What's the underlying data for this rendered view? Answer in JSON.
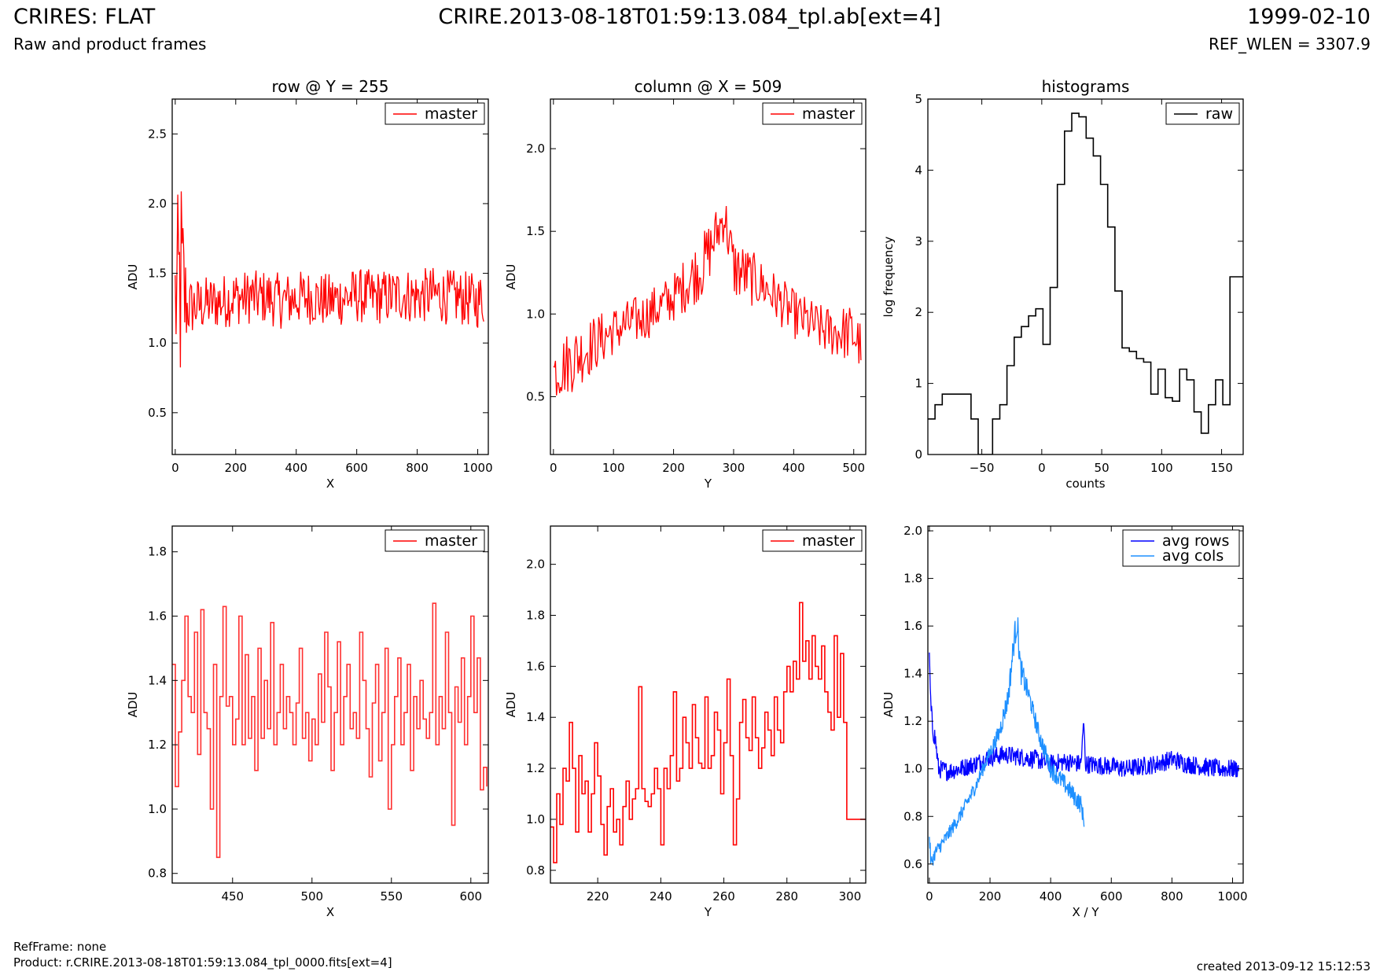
{
  "header": {
    "left_title": "CRIRES: FLAT",
    "left_subtitle": "Raw and product frames",
    "center_title": "CRIRE.2013-08-18T01:59:13.084_tpl.ab[ext=4]",
    "right_date": "1999-02-10",
    "right_wlen": "REF_WLEN = 3307.9"
  },
  "footer": {
    "refframe": "RefFrame: none",
    "product": "Product: r.CRIRE.2013-08-18T01:59:13.084_tpl_0000.fits[ext=4]",
    "created": "created 2013-09-12 15:12:53"
  },
  "colors": {
    "red": "#ff0000",
    "black": "#000000",
    "blue": "#0000ff",
    "lightblue": "#1e90ff"
  },
  "chart_data": [
    {
      "id": "row",
      "type": "line",
      "title": "row @ Y = 255",
      "xlabel": "X",
      "ylabel": "ADU",
      "xlim": [
        -10,
        1035
      ],
      "ylim": [
        0.2,
        2.75
      ],
      "xticks": [
        0,
        200,
        400,
        600,
        800,
        1000
      ],
      "yticks": [
        0.5,
        1.0,
        1.5,
        2.0,
        2.5
      ],
      "ytick_labels": [
        "0.5",
        "1.0",
        "1.5",
        "2.0",
        "2.5"
      ],
      "legend": [
        {
          "label": "master",
          "color": "#ff0000"
        }
      ],
      "legend_loc": "top-right",
      "series": [
        {
          "name": "master",
          "color": "#ff0000",
          "x": [
            0,
            20,
            40,
            100,
            160,
            200,
            240,
            250,
            260,
            300,
            350,
            400,
            450,
            500,
            550,
            600,
            650,
            700,
            750,
            800,
            850,
            900,
            950,
            1000,
            1020
          ],
          "y": [
            1.3,
            1.4,
            1.25,
            1.28,
            1.3,
            1.33,
            1.32,
            1.35,
            1.32,
            1.33,
            1.3,
            1.32,
            1.33,
            1.3,
            1.32,
            1.34,
            1.33,
            1.33,
            1.35,
            1.33,
            1.35,
            1.33,
            1.32,
            1.3,
            1.32
          ],
          "spread": [
            0.6,
            0.9,
            0.22,
            0.2,
            0.2,
            0.2,
            0.2,
            0.2,
            0.2,
            0.2,
            0.2,
            0.2,
            0.2,
            0.2,
            0.2,
            0.2,
            0.2,
            0.2,
            0.2,
            0.2,
            0.2,
            0.2,
            0.2,
            0.2,
            0.2
          ],
          "n": 360
        }
      ]
    },
    {
      "id": "col",
      "type": "line",
      "title": "column @ X = 509",
      "xlabel": "Y",
      "ylabel": "ADU",
      "xlim": [
        -5,
        520
      ],
      "ylim": [
        0.15,
        2.3
      ],
      "xticks": [
        0,
        100,
        200,
        300,
        400,
        500
      ],
      "yticks": [
        0.5,
        1.0,
        1.5,
        2.0
      ],
      "ytick_labels": [
        "0.5",
        "1.0",
        "1.5",
        "2.0"
      ],
      "legend": [
        {
          "label": "master",
          "color": "#ff0000"
        }
      ],
      "legend_loc": "top-right",
      "series": [
        {
          "name": "master",
          "color": "#ff0000",
          "x": [
            0,
            30,
            60,
            100,
            150,
            200,
            250,
            285,
            300,
            350,
            400,
            450,
            500,
            512
          ],
          "y": [
            0.65,
            0.72,
            0.8,
            0.9,
            0.98,
            1.1,
            1.3,
            1.6,
            1.28,
            1.17,
            1.0,
            0.9,
            0.88,
            0.8
          ],
          "spread": [
            0.18,
            0.2,
            0.18,
            0.15,
            0.15,
            0.15,
            0.2,
            0.15,
            0.2,
            0.15,
            0.15,
            0.15,
            0.18,
            0.15
          ],
          "n": 300
        }
      ]
    },
    {
      "id": "hist",
      "type": "line",
      "title": "histograms",
      "xlabel": "counts",
      "ylabel": "log frequency",
      "xlim": [
        -95,
        168
      ],
      "ylim": [
        0,
        5
      ],
      "xticks": [
        -50,
        0,
        50,
        100,
        150
      ],
      "xtick_labels": [
        "−50",
        "0",
        "50",
        "100",
        "150"
      ],
      "yticks": [
        0,
        1,
        2,
        3,
        4,
        5
      ],
      "ytick_labels": [
        "0",
        "1",
        "2",
        "3",
        "4",
        "5"
      ],
      "legend": [
        {
          "label": "raw",
          "color": "#000000"
        }
      ],
      "legend_loc": "top-right",
      "series": [
        {
          "name": "raw",
          "color": "#000000",
          "step": true,
          "x": [
            -95,
            -89,
            -83,
            -77,
            -71,
            -65,
            -59,
            -53,
            -47,
            -41,
            -35,
            -29,
            -23,
            -17,
            -11,
            -5,
            1,
            7,
            13,
            19,
            25,
            31,
            37,
            43,
            49,
            55,
            61,
            67,
            73,
            79,
            85,
            91,
            97,
            103,
            109,
            115,
            121,
            127,
            133,
            139,
            145,
            151,
            157,
            163,
            168
          ],
          "y": [
            0.5,
            0.7,
            0.85,
            0.85,
            0.85,
            0.85,
            0.5,
            0.0,
            0.0,
            0.5,
            0.7,
            1.25,
            1.65,
            1.8,
            1.95,
            2.05,
            1.55,
            2.35,
            3.8,
            4.55,
            4.8,
            4.75,
            4.45,
            4.2,
            3.8,
            3.2,
            2.3,
            1.5,
            1.45,
            1.35,
            1.3,
            0.85,
            1.2,
            0.8,
            0.75,
            1.2,
            1.05,
            0.6,
            0.3,
            0.7,
            1.05,
            0.7,
            2.5,
            2.5,
            2.5
          ]
        }
      ]
    },
    {
      "id": "rowzoom",
      "type": "line",
      "title": "",
      "xlabel": "X",
      "ylabel": "ADU",
      "xlim": [
        412,
        611
      ],
      "ylim": [
        0.77,
        1.88
      ],
      "xticks": [
        450,
        500,
        550,
        600
      ],
      "yticks": [
        0.8,
        1.0,
        1.2,
        1.4,
        1.6,
        1.8
      ],
      "ytick_labels": [
        "0.8",
        "1.0",
        "1.2",
        "1.4",
        "1.6",
        "1.8"
      ],
      "legend": [
        {
          "label": "master",
          "color": "#ff0000"
        }
      ],
      "legend_loc": "top-right",
      "series": [
        {
          "name": "master",
          "color": "#ff3030",
          "step": true,
          "x": [
            412,
            414,
            416,
            418,
            420,
            422,
            424,
            426,
            428,
            430,
            432,
            434,
            436,
            438,
            440,
            442,
            444,
            446,
            448,
            450,
            452,
            454,
            456,
            458,
            460,
            462,
            464,
            466,
            468,
            470,
            472,
            474,
            476,
            478,
            480,
            482,
            484,
            486,
            488,
            490,
            492,
            494,
            496,
            498,
            500,
            502,
            504,
            506,
            508,
            510,
            512,
            514,
            516,
            518,
            520,
            522,
            524,
            526,
            528,
            530,
            532,
            534,
            536,
            538,
            540,
            542,
            544,
            546,
            548,
            550,
            552,
            554,
            556,
            558,
            560,
            562,
            564,
            566,
            568,
            570,
            572,
            574,
            576,
            578,
            580,
            582,
            584,
            586,
            588,
            590,
            592,
            594,
            596,
            598,
            600,
            602,
            604,
            606,
            608,
            610
          ],
          "y": [
            1.45,
            1.07,
            1.24,
            1.4,
            1.6,
            1.35,
            1.3,
            1.55,
            1.17,
            1.62,
            1.3,
            1.25,
            1.0,
            1.45,
            0.85,
            1.35,
            1.63,
            1.32,
            1.35,
            1.2,
            1.28,
            1.6,
            1.2,
            1.48,
            1.22,
            1.35,
            1.12,
            1.5,
            1.22,
            1.4,
            1.25,
            1.58,
            1.2,
            1.3,
            1.45,
            1.25,
            1.35,
            1.3,
            1.2,
            1.33,
            1.5,
            1.22,
            1.3,
            1.15,
            1.28,
            1.2,
            1.42,
            1.27,
            1.55,
            1.38,
            1.12,
            1.3,
            1.52,
            1.2,
            1.35,
            1.45,
            1.25,
            1.3,
            1.22,
            1.55,
            1.4,
            1.25,
            1.1,
            1.33,
            1.45,
            1.15,
            1.3,
            1.5,
            1.0,
            1.2,
            1.35,
            1.47,
            1.2,
            1.3,
            1.45,
            1.12,
            1.35,
            1.25,
            1.4,
            1.28,
            1.22,
            1.3,
            1.64,
            1.2,
            1.35,
            1.25,
            1.55,
            1.3,
            0.95,
            1.38,
            1.27,
            1.47,
            1.2,
            1.35,
            1.6,
            1.3,
            1.47,
            1.06,
            1.13,
            1.07
          ]
        }
      ]
    },
    {
      "id": "colzoom",
      "type": "line",
      "title": "",
      "xlabel": "Y",
      "ylabel": "ADU",
      "xlim": [
        205,
        305
      ],
      "ylim": [
        0.75,
        2.15
      ],
      "xticks": [
        220,
        240,
        260,
        280,
        300
      ],
      "yticks": [
        0.8,
        1.0,
        1.2,
        1.4,
        1.6,
        1.8,
        2.0
      ],
      "ytick_labels": [
        "0.8",
        "1.0",
        "1.2",
        "1.4",
        "1.6",
        "1.8",
        "2.0"
      ],
      "legend": [
        {
          "label": "master",
          "color": "#ff0000"
        }
      ],
      "legend_loc": "top-right",
      "series": [
        {
          "name": "master",
          "color": "#ff0000",
          "step": true,
          "x": [
            205,
            206,
            207,
            208,
            209,
            210,
            211,
            212,
            213,
            214,
            215,
            216,
            217,
            218,
            219,
            220,
            221,
            222,
            223,
            224,
            225,
            226,
            227,
            228,
            229,
            230,
            231,
            232,
            233,
            234,
            235,
            236,
            237,
            238,
            239,
            240,
            241,
            242,
            243,
            244,
            245,
            246,
            247,
            248,
            249,
            250,
            251,
            252,
            253,
            254,
            255,
            256,
            257,
            258,
            259,
            260,
            261,
            262,
            263,
            264,
            265,
            266,
            267,
            268,
            269,
            270,
            271,
            272,
            273,
            274,
            275,
            276,
            277,
            278,
            279,
            280,
            281,
            282,
            283,
            284,
            285,
            286,
            287,
            288,
            289,
            290,
            291,
            292,
            293,
            294,
            295,
            296,
            297,
            298,
            299,
            300,
            301,
            302,
            303,
            304,
            305
          ],
          "y": [
            0.97,
            0.83,
            1.1,
            0.98,
            1.2,
            1.15,
            1.38,
            1.2,
            0.95,
            1.25,
            1.1,
            1.15,
            0.95,
            1.1,
            1.3,
            1.17,
            0.98,
            0.86,
            1.05,
            1.12,
            0.95,
            1.0,
            0.9,
            1.05,
            1.15,
            1.0,
            1.08,
            1.12,
            1.52,
            1.12,
            1.07,
            1.05,
            1.1,
            1.2,
            1.12,
            0.9,
            1.2,
            1.12,
            1.25,
            1.5,
            1.15,
            1.2,
            1.4,
            1.3,
            1.2,
            1.45,
            1.32,
            1.22,
            1.2,
            1.48,
            1.2,
            1.25,
            1.42,
            1.35,
            1.1,
            1.3,
            1.55,
            1.25,
            0.9,
            1.08,
            1.38,
            1.47,
            1.32,
            1.27,
            1.48,
            1.32,
            1.2,
            1.28,
            1.42,
            1.35,
            1.25,
            1.48,
            1.35,
            1.3,
            1.5,
            1.6,
            1.5,
            1.62,
            1.55,
            1.85,
            1.62,
            1.7,
            1.55,
            1.72,
            1.6,
            1.55,
            1.68,
            1.5,
            1.42,
            1.35,
            1.72,
            1.4,
            1.65,
            1.38,
            1.0,
            1.0,
            1.0,
            1.0,
            1.0,
            1.0,
            1.0
          ]
        }
      ]
    },
    {
      "id": "avg",
      "type": "line",
      "title": "",
      "xlabel": "X / Y",
      "ylabel": "ADU",
      "xlim": [
        -5,
        1035
      ],
      "ylim": [
        0.52,
        2.02
      ],
      "xticks": [
        0,
        200,
        400,
        600,
        800,
        1000
      ],
      "yticks": [
        0.6,
        0.8,
        1.0,
        1.2,
        1.4,
        1.6,
        1.8,
        2.0
      ],
      "ytick_labels": [
        "0.6",
        "0.8",
        "1.0",
        "1.2",
        "1.4",
        "1.6",
        "1.8",
        "2.0"
      ],
      "legend": [
        {
          "label": "avg rows",
          "color": "#0000ff"
        },
        {
          "label": "avg cols",
          "color": "#1e90ff"
        }
      ],
      "legend_loc": "top-right",
      "series": [
        {
          "name": "avg rows",
          "color": "#0000ff",
          "x": [
            0,
            5,
            10,
            20,
            30,
            60,
            100,
            150,
            200,
            250,
            300,
            350,
            400,
            450,
            500,
            509,
            515,
            600,
            650,
            700,
            750,
            800,
            850,
            900,
            950,
            1000,
            1020
          ],
          "y": [
            1.45,
            1.25,
            1.18,
            1.12,
            1.0,
            0.99,
            1.0,
            1.02,
            1.05,
            1.06,
            1.05,
            1.04,
            1.02,
            1.03,
            1.02,
            1.2,
            1.02,
            1.01,
            1.0,
            1.01,
            1.02,
            1.04,
            1.02,
            1.01,
            1.0,
            1.0,
            1.0
          ],
          "spread": [
            0.05,
            0.05,
            0.05,
            0.05,
            0.04,
            0.04,
            0.04,
            0.04,
            0.04,
            0.04,
            0.04,
            0.04,
            0.04,
            0.04,
            0.04,
            0.02,
            0.04,
            0.04,
            0.04,
            0.04,
            0.04,
            0.04,
            0.04,
            0.04,
            0.04,
            0.04,
            0.04
          ],
          "n": 700
        },
        {
          "name": "avg cols",
          "color": "#1e90ff",
          "x": [
            0,
            5,
            20,
            50,
            100,
            150,
            200,
            230,
            260,
            280,
            290,
            300,
            330,
            360,
            400,
            450,
            480,
            500,
            510
          ],
          "y": [
            0.72,
            0.6,
            0.65,
            0.7,
            0.8,
            0.92,
            1.07,
            1.15,
            1.3,
            1.55,
            1.62,
            1.42,
            1.3,
            1.15,
            1.0,
            0.93,
            0.88,
            0.85,
            0.78
          ],
          "spread": [
            0.04,
            0.03,
            0.03,
            0.03,
            0.03,
            0.03,
            0.03,
            0.04,
            0.05,
            0.06,
            0.06,
            0.06,
            0.04,
            0.04,
            0.04,
            0.04,
            0.04,
            0.04,
            0.03
          ],
          "n": 380
        }
      ]
    }
  ]
}
